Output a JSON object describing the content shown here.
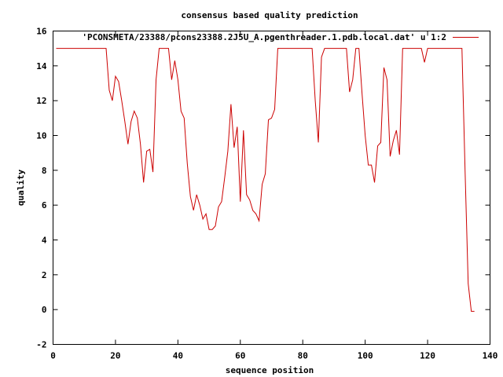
{
  "chart_data": {
    "type": "line",
    "title": "consensus based quality prediction",
    "xlabel": "sequence position",
    "ylabel": "quality",
    "xlim": [
      0,
      140
    ],
    "ylim": [
      -2,
      16
    ],
    "x_ticks": [
      0,
      20,
      40,
      60,
      80,
      100,
      120,
      140
    ],
    "y_ticks": [
      -2,
      0,
      2,
      4,
      6,
      8,
      10,
      12,
      14,
      16
    ],
    "grid": false,
    "legend_position": "top-right",
    "series": [
      {
        "name": "'PCONSMETA/23388/pcons23388.2J5U_A.pgenthreader.1.pdb.local.dat' u 1:2",
        "color": "#cc0000",
        "x": [
          1,
          2,
          3,
          4,
          5,
          6,
          7,
          8,
          9,
          10,
          11,
          12,
          13,
          14,
          15,
          16,
          17,
          18,
          19,
          20,
          21,
          22,
          23,
          24,
          25,
          26,
          27,
          28,
          29,
          30,
          31,
          32,
          33,
          34,
          35,
          36,
          37,
          38,
          39,
          40,
          41,
          42,
          43,
          44,
          45,
          46,
          47,
          48,
          49,
          50,
          51,
          52,
          53,
          54,
          55,
          56,
          57,
          58,
          59,
          60,
          61,
          62,
          63,
          64,
          65,
          66,
          67,
          68,
          69,
          70,
          71,
          72,
          73,
          74,
          75,
          76,
          77,
          78,
          79,
          80,
          81,
          82,
          83,
          84,
          85,
          86,
          87,
          88,
          89,
          90,
          91,
          92,
          93,
          94,
          95,
          96,
          97,
          98,
          99,
          100,
          101,
          102,
          103,
          104,
          105,
          106,
          107,
          108,
          109,
          110,
          111,
          112,
          113,
          114,
          115,
          116,
          117,
          118,
          119,
          120,
          121,
          122,
          123,
          124,
          125,
          126,
          127,
          128,
          129,
          130,
          131,
          132,
          133,
          134,
          135
        ],
        "values": [
          15,
          15,
          15,
          15,
          15,
          15,
          15,
          15,
          15,
          15,
          15,
          15,
          15,
          15,
          15,
          15,
          15,
          12.6,
          12,
          13.4,
          13.1,
          12,
          10.8,
          9.5,
          10.8,
          11.4,
          11,
          9.5,
          7.3,
          9.1,
          9.2,
          7.9,
          13.2,
          15,
          15,
          15,
          15,
          13.2,
          14.3,
          13.2,
          11.4,
          11,
          8.4,
          6.5,
          5.7,
          6.6,
          6,
          5.2,
          5.5,
          4.6,
          4.6,
          4.8,
          5.9,
          6.2,
          7.6,
          9.1,
          11.8,
          9.3,
          10.5,
          6.2,
          10.3,
          6.6,
          6.3,
          5.7,
          5.5,
          5.1,
          7.2,
          7.8,
          10.9,
          11,
          11.5,
          15,
          15,
          15,
          15,
          15,
          15,
          15,
          15,
          15,
          15,
          15,
          15,
          12,
          9.6,
          14.5,
          15,
          15,
          15,
          15,
          15,
          15,
          15,
          15,
          12.5,
          13.2,
          15,
          15,
          12.4,
          10,
          8.3,
          8.3,
          7.3,
          9.4,
          9.6,
          13.9,
          13.2,
          8.8,
          9.7,
          10.3,
          8.9,
          15,
          15,
          15,
          15,
          15,
          15,
          15,
          14.2,
          15,
          15,
          15,
          15,
          15,
          15,
          15,
          15,
          15,
          15,
          15,
          15,
          8,
          1.5,
          -0.1,
          -0.1
        ]
      }
    ]
  }
}
